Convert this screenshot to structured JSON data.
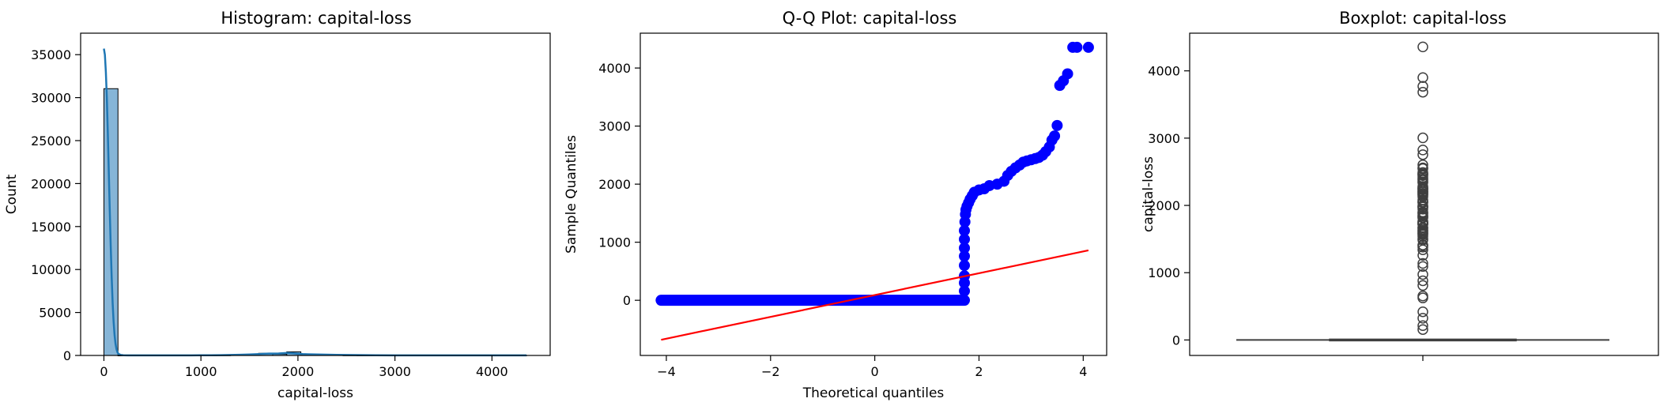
{
  "chart_data": [
    {
      "type": "bar",
      "title": "Histogram: capital-loss",
      "xlabel": "capital-loss",
      "ylabel": "Count",
      "xlim": [
        -240,
        4600
      ],
      "ylim": [
        0,
        37500
      ],
      "xticks": [
        0,
        1000,
        2000,
        3000,
        4000
      ],
      "yticks": [
        0,
        5000,
        10000,
        15000,
        20000,
        25000,
        30000,
        35000
      ],
      "bin_width": 145,
      "bins": [
        {
          "x0": 0,
          "x1": 145,
          "count": 31042
        },
        {
          "x0": 145,
          "x1": 290,
          "count": 5
        },
        {
          "x0": 290,
          "x1": 435,
          "count": 7
        },
        {
          "x0": 435,
          "x1": 580,
          "count": 4
        },
        {
          "x0": 580,
          "x1": 725,
          "count": 9
        },
        {
          "x0": 725,
          "x1": 870,
          "count": 10
        },
        {
          "x0": 870,
          "x1": 1015,
          "count": 8
        },
        {
          "x0": 1015,
          "x1": 1160,
          "count": 9
        },
        {
          "x0": 1160,
          "x1": 1305,
          "count": 23
        },
        {
          "x0": 1305,
          "x1": 1450,
          "count": 52
        },
        {
          "x0": 1450,
          "x1": 1595,
          "count": 120
        },
        {
          "x0": 1595,
          "x1": 1740,
          "count": 250
        },
        {
          "x0": 1740,
          "x1": 1885,
          "count": 150
        },
        {
          "x0": 1885,
          "x1": 2030,
          "count": 420
        },
        {
          "x0": 2030,
          "x1": 2175,
          "count": 95
        },
        {
          "x0": 2175,
          "x1": 2320,
          "count": 90
        },
        {
          "x0": 2320,
          "x1": 2465,
          "count": 55
        },
        {
          "x0": 2465,
          "x1": 2610,
          "count": 20
        },
        {
          "x0": 2610,
          "x1": 2755,
          "count": 8
        },
        {
          "x0": 2755,
          "x1": 2900,
          "count": 6
        },
        {
          "x0": 2900,
          "x1": 3045,
          "count": 3
        },
        {
          "x0": 3045,
          "x1": 3190,
          "count": 1
        },
        {
          "x0": 3190,
          "x1": 3335,
          "count": 0
        },
        {
          "x0": 3335,
          "x1": 3480,
          "count": 0
        },
        {
          "x0": 3480,
          "x1": 3625,
          "count": 0
        },
        {
          "x0": 3625,
          "x1": 3770,
          "count": 2
        },
        {
          "x0": 3770,
          "x1": 3915,
          "count": 4
        },
        {
          "x0": 3915,
          "x1": 4060,
          "count": 0
        },
        {
          "x0": 4060,
          "x1": 4205,
          "count": 0
        },
        {
          "x0": 4205,
          "x1": 4356,
          "count": 3
        }
      ],
      "kde": {
        "x": [
          0,
          10,
          20,
          30,
          40,
          50,
          60,
          70,
          80,
          90,
          100,
          110,
          120,
          130,
          140,
          150,
          175,
          200,
          250,
          300,
          400,
          500,
          600,
          700,
          800,
          900,
          1000,
          1100,
          1200,
          1300,
          1400,
          1500,
          1600,
          1650,
          1700,
          1750,
          1800,
          1850,
          1880,
          1900,
          1920,
          1950,
          2000,
          2050,
          2100,
          2200,
          2300,
          2400,
          2500,
          2600,
          2700,
          2800,
          3000,
          3200,
          3400,
          3600,
          3800,
          4000,
          4200,
          4356
        ],
        "y": [
          35700,
          35000,
          33000,
          30000,
          26000,
          21500,
          17000,
          12800,
          9100,
          6100,
          3900,
          2350,
          1330,
          720,
          370,
          180,
          55,
          20,
          12,
          10,
          9,
          9,
          10,
          12,
          14,
          17,
          20,
          26,
          36,
          52,
          78,
          115,
          165,
          195,
          220,
          215,
          225,
          260,
          285,
          290,
          280,
          250,
          200,
          160,
          135,
          110,
          90,
          70,
          55,
          42,
          32,
          25,
          17,
          12,
          10,
          10,
          11,
          10,
          9,
          8
        ]
      },
      "bar_color": "#7fb1d5",
      "kde_color": "#1f77b4"
    },
    {
      "type": "scatter",
      "title": "Q-Q Plot: capital-loss",
      "xlabel": "Theoretical quantiles",
      "ylabel": "Sample Quantiles",
      "xlim": [
        -4.5,
        4.45
      ],
      "ylim": [
        -950,
        4600
      ],
      "xticks": [
        -4,
        -2,
        0,
        2,
        4
      ],
      "yticks": [
        0,
        1000,
        2000,
        3000,
        4000
      ],
      "zero_run": {
        "x_start": -4.1,
        "x_end": 1.72,
        "y": 0
      },
      "points": [
        [
          1.72,
          160
        ],
        [
          1.72,
          300
        ],
        [
          1.72,
          420
        ],
        [
          1.72,
          600
        ],
        [
          1.72,
          760
        ],
        [
          1.72,
          900
        ],
        [
          1.72,
          1050
        ],
        [
          1.72,
          1200
        ],
        [
          1.73,
          1350
        ],
        [
          1.74,
          1480
        ],
        [
          1.75,
          1560
        ],
        [
          1.77,
          1620
        ],
        [
          1.8,
          1680
        ],
        [
          1.83,
          1740
        ],
        [
          1.87,
          1800
        ],
        [
          1.91,
          1860
        ],
        [
          2.0,
          1900
        ],
        [
          2.1,
          1920
        ],
        [
          2.2,
          1975
        ],
        [
          2.35,
          2000
        ],
        [
          2.48,
          2050
        ],
        [
          2.55,
          2150
        ],
        [
          2.62,
          2220
        ],
        [
          2.7,
          2280
        ],
        [
          2.78,
          2330
        ],
        [
          2.85,
          2380
        ],
        [
          2.92,
          2400
        ],
        [
          3.0,
          2420
        ],
        [
          3.08,
          2440
        ],
        [
          3.15,
          2460
        ],
        [
          3.22,
          2500
        ],
        [
          3.28,
          2560
        ],
        [
          3.35,
          2640
        ],
        [
          3.4,
          2760
        ],
        [
          3.45,
          2830
        ],
        [
          3.5,
          3010
        ],
        [
          3.55,
          3700
        ],
        [
          3.62,
          3780
        ],
        [
          3.7,
          3900
        ],
        [
          3.8,
          4356
        ],
        [
          3.88,
          4356
        ],
        [
          4.1,
          4356
        ]
      ],
      "fit_line": {
        "x": [
          -4.1,
          4.1
        ],
        "y": [
          -680,
          860
        ]
      },
      "point_color": "#0000ff",
      "line_color": "#ff0000"
    },
    {
      "type": "box",
      "title": "Boxplot: capital-loss",
      "xlabel": "",
      "ylabel": "capital-loss",
      "ylim": [
        -230,
        4560
      ],
      "yticks": [
        0,
        1000,
        2000,
        3000,
        4000
      ],
      "median": 0,
      "q1": 0,
      "q3": 0,
      "whisker_low": 0,
      "whisker_high": 0,
      "outliers": [
        155,
        213,
        323,
        419,
        625,
        653,
        810,
        880,
        974,
        1092,
        1138,
        1258,
        1340,
        1380,
        1408,
        1411,
        1485,
        1504,
        1539,
        1564,
        1579,
        1590,
        1602,
        1617,
        1628,
        1648,
        1668,
        1672,
        1719,
        1721,
        1726,
        1735,
        1740,
        1741,
        1755,
        1762,
        1816,
        1825,
        1844,
        1848,
        1876,
        1887,
        1902,
        1944,
        1974,
        1977,
        1980,
        2001,
        2042,
        2051,
        2057,
        2080,
        2129,
        2149,
        2163,
        2174,
        2179,
        2201,
        2205,
        2206,
        2231,
        2238,
        2246,
        2258,
        2267,
        2282,
        2339,
        2352,
        2377,
        2392,
        2415,
        2444,
        2457,
        2467,
        2472,
        2489,
        2547,
        2559,
        2603,
        2754,
        2824,
        3004,
        3683,
        3770,
        3900,
        4356
      ]
    }
  ]
}
